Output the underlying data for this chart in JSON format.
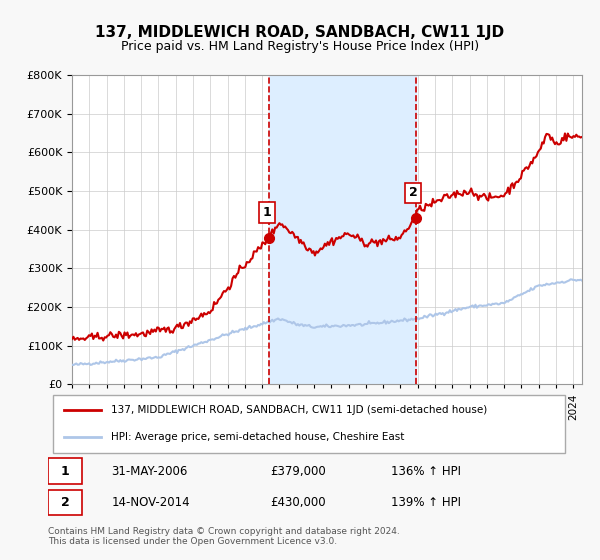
{
  "title": "137, MIDDLEWICH ROAD, SANDBACH, CW11 1JD",
  "subtitle": "Price paid vs. HM Land Registry's House Price Index (HPI)",
  "legend_line1": "137, MIDDLEWICH ROAD, SANDBACH, CW11 1JD (semi-detached house)",
  "legend_line2": "HPI: Average price, semi-detached house, Cheshire East",
  "footnote": "Contains HM Land Registry data © Crown copyright and database right 2024.\nThis data is licensed under the Open Government Licence v3.0.",
  "sale1_label": "1",
  "sale1_date": "31-MAY-2006",
  "sale1_price": "£379,000",
  "sale1_hpi": "136% ↑ HPI",
  "sale2_label": "2",
  "sale2_date": "14-NOV-2014",
  "sale2_price": "£430,000",
  "sale2_hpi": "139% ↑ HPI",
  "sale1_year": 2006.41,
  "sale2_year": 2014.87,
  "sale1_price_val": 379000,
  "sale2_price_val": 430000,
  "hpi_line_color": "#aec6e8",
  "price_line_color": "#cc0000",
  "sale_dot_color": "#cc0000",
  "shading_color": "#ddeeff",
  "vline_color": "#cc0000",
  "grid_color": "#cccccc",
  "bg_color": "#f8f8f8",
  "plot_bg_color": "#ffffff",
  "ylim": [
    0,
    800000
  ],
  "xlim_start": 1995,
  "xlim_end": 2024.5
}
